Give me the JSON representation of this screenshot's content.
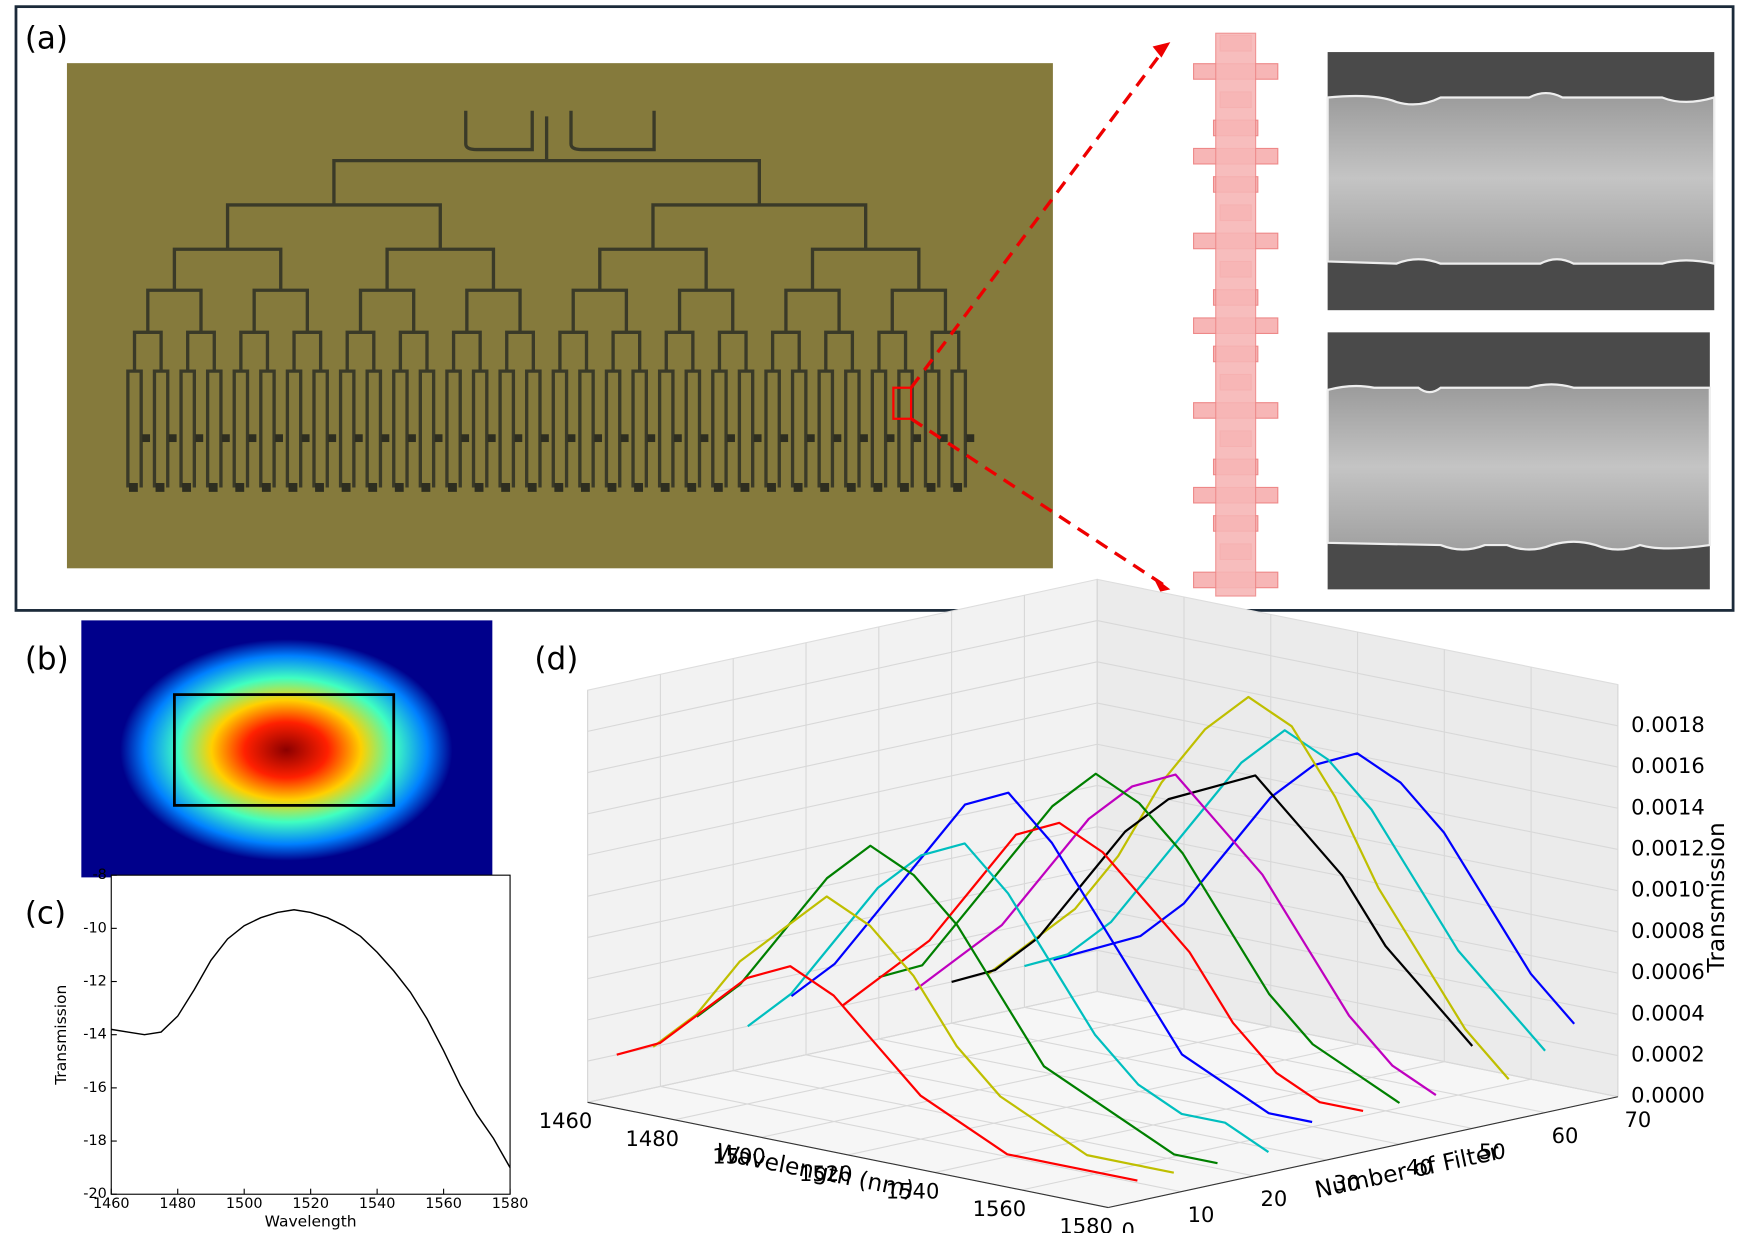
{
  "panels": {
    "a": "(a)",
    "b": "(b)",
    "c": "(c)",
    "d": "(d)"
  },
  "chart_data": [
    {
      "type": "line",
      "x_label": "Wavelength",
      "y_label": "Transmission",
      "color": "#000000",
      "x": [
        1460,
        1465,
        1470,
        1475,
        1480,
        1485,
        1490,
        1495,
        1500,
        1505,
        1510,
        1515,
        1520,
        1525,
        1530,
        1535,
        1540,
        1545,
        1550,
        1555,
        1560,
        1565,
        1570,
        1575,
        1580
      ],
      "values": [
        -13.8,
        -13.9,
        -14.0,
        -13.9,
        -13.3,
        -12.3,
        -11.2,
        -10.4,
        -9.9,
        -9.6,
        -9.4,
        -9.3,
        -9.4,
        -9.6,
        -9.9,
        -10.3,
        -10.9,
        -11.6,
        -12.4,
        -13.4,
        -14.6,
        -15.9,
        -17.0,
        -17.9,
        -19.0
      ],
      "xlim": [
        1460,
        1580
      ],
      "ylim": [
        -20,
        -8
      ],
      "xticks": [
        1460,
        1480,
        1500,
        1520,
        1540,
        1560,
        1580
      ],
      "yticks": [
        -8,
        -10,
        -12,
        -14,
        -16,
        -18,
        -20
      ]
    },
    {
      "type": "line3d",
      "x_label": "Wavelength (nm)",
      "y_label": "Number of Filter",
      "z_label": "Transmission",
      "x": [
        1460,
        1470,
        1480,
        1490,
        1500,
        1510,
        1520,
        1530,
        1540,
        1550,
        1560,
        1570,
        1580
      ],
      "xlim": [
        1460,
        1580
      ],
      "ylim": [
        0,
        70
      ],
      "zlim": [
        0,
        0.002
      ],
      "xticks": [
        1460,
        1480,
        1500,
        1520,
        1540,
        1560,
        1580
      ],
      "yticks": [
        0,
        10,
        20,
        30,
        40,
        50,
        60,
        70
      ],
      "zticks": [
        {
          "value": 0,
          "label": "0.0000"
        },
        {
          "value": 0.0002,
          "label": "0.0002"
        },
        {
          "value": 0.0004,
          "label": "0.0004"
        },
        {
          "value": 0.0006,
          "label": "0.0006"
        },
        {
          "value": 0.0008,
          "label": "0.0008"
        },
        {
          "value": 0.001,
          "label": "0.0010"
        },
        {
          "value": 0.0012,
          "label": "0.0012"
        },
        {
          "value": 0.0014,
          "label": "0.0014"
        },
        {
          "value": 0.0016,
          "label": "0.0016"
        },
        {
          "value": 0.0018,
          "label": "0.0018"
        }
      ],
      "series": [
        {
          "color": "#0000ff",
          "z": 64,
          "values": [
            0.0002,
            0.0003,
            0.0004,
            0.0006,
            0.0009,
            0.0012,
            0.0014,
            0.0015,
            0.0014,
            0.0012,
            0.0009,
            0.0006,
            0.0004
          ]
        },
        {
          "color": "#00bfbf",
          "z": 60,
          "values": [
            0.0002,
            0.0003,
            0.0005,
            0.0008,
            0.0011,
            0.0014,
            0.0016,
            0.0015,
            0.0013,
            0.001,
            0.0007,
            0.0005,
            0.0003
          ]
        },
        {
          "color": "#bfbf00",
          "z": 55,
          "values": [
            0.0002,
            0.0004,
            0.0006,
            0.0009,
            0.0013,
            0.0016,
            0.0018,
            0.0017,
            0.0014,
            0.001,
            0.0007,
            0.0004,
            0.0002
          ]
        },
        {
          "color": "#000000",
          "z": 50,
          "values": [
            0.0002,
            0.0003,
            0.0005,
            0.0008,
            0.0011,
            0.0013,
            0.0014,
            0.0015,
            0.0013,
            0.0011,
            0.0008,
            0.0006,
            0.0004
          ]
        },
        {
          "color": "#bf00bf",
          "z": 45,
          "values": [
            0.0002,
            0.0004,
            0.0006,
            0.0009,
            0.0012,
            0.0014,
            0.0015,
            0.0013,
            0.0011,
            0.0008,
            0.0005,
            0.0003,
            0.0002
          ]
        },
        {
          "color": "#008000",
          "z": 40,
          "values": [
            0.0003,
            0.0004,
            0.0007,
            0.001,
            0.0013,
            0.0015,
            0.0014,
            0.0012,
            0.0009,
            0.0006,
            0.0004,
            0.0003,
            0.0002
          ]
        },
        {
          "color": "#ff0000",
          "z": 35,
          "values": [
            0.0002,
            0.0004,
            0.0006,
            0.0009,
            0.0012,
            0.0013,
            0.0012,
            0.001,
            0.0008,
            0.0005,
            0.0003,
            0.0002,
            0.0002
          ]
        },
        {
          "color": "#0000ff",
          "z": 28,
          "values": [
            0.0003,
            0.0005,
            0.0008,
            0.0011,
            0.0014,
            0.0015,
            0.0013,
            0.001,
            0.0007,
            0.0004,
            0.0003,
            0.0002,
            0.0002
          ]
        },
        {
          "color": "#00bfbf",
          "z": 22,
          "values": [
            0.0002,
            0.0004,
            0.0007,
            0.001,
            0.0012,
            0.0013,
            0.0011,
            0.0008,
            0.0005,
            0.0003,
            0.0002,
            0.0002,
            0.0001
          ]
        },
        {
          "color": "#008000",
          "z": 15,
          "values": [
            0.0003,
            0.0005,
            0.0008,
            0.0011,
            0.0013,
            0.0012,
            0.001,
            0.0007,
            0.0004,
            0.0003,
            0.0002,
            0.0001,
            0.0001
          ]
        },
        {
          "color": "#bfbf00",
          "z": 9,
          "values": [
            0.0002,
            0.0004,
            0.0007,
            0.0009,
            0.0011,
            0.001,
            0.0008,
            0.0005,
            0.0003,
            0.0002,
            0.0001,
            0.0001,
            0.0001
          ]
        },
        {
          "color": "#ff0000",
          "z": 4,
          "values": [
            0.0002,
            0.0003,
            0.0005,
            0.0007,
            0.0008,
            0.0007,
            0.0005,
            0.0003,
            0.0002,
            0.0001,
            0.0001,
            0.0001,
            0.0001
          ]
        }
      ]
    }
  ]
}
